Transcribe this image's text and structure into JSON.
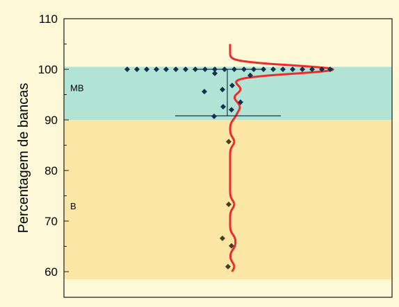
{
  "chart_data": {
    "type": "scatter",
    "ylabel": "Percentagem de bancas",
    "xlabel": "",
    "title": "",
    "ylim": [
      58,
      110
    ],
    "yticks": [
      60,
      70,
      80,
      90,
      100,
      110
    ],
    "bands": [
      {
        "label": "MB",
        "from": 90,
        "to": 100.5,
        "color": "#b2e4d6"
      },
      {
        "label": "B",
        "from": 58.5,
        "to": 90,
        "color": "#fbe6a6"
      }
    ],
    "colors": {
      "points": "#12324d",
      "outer_points": "#4a3b22",
      "density": "#ef2a2a",
      "plot_background": "#fdf9d8",
      "frame": "#1a1a1a"
    },
    "points_y": [
      100,
      100,
      100,
      100,
      100,
      100,
      100,
      100,
      100,
      100,
      100,
      100,
      100,
      100,
      100,
      100,
      100,
      100,
      100,
      100,
      100,
      100,
      100,
      100,
      99.2,
      98.8,
      96.8,
      96,
      95.6,
      93.5,
      92.6,
      92,
      90.7,
      85.7,
      73.3,
      66.6,
      65.1,
      61
    ],
    "mean_errorbar": {
      "center": 100,
      "low": 90.8,
      "high": 100
    }
  }
}
